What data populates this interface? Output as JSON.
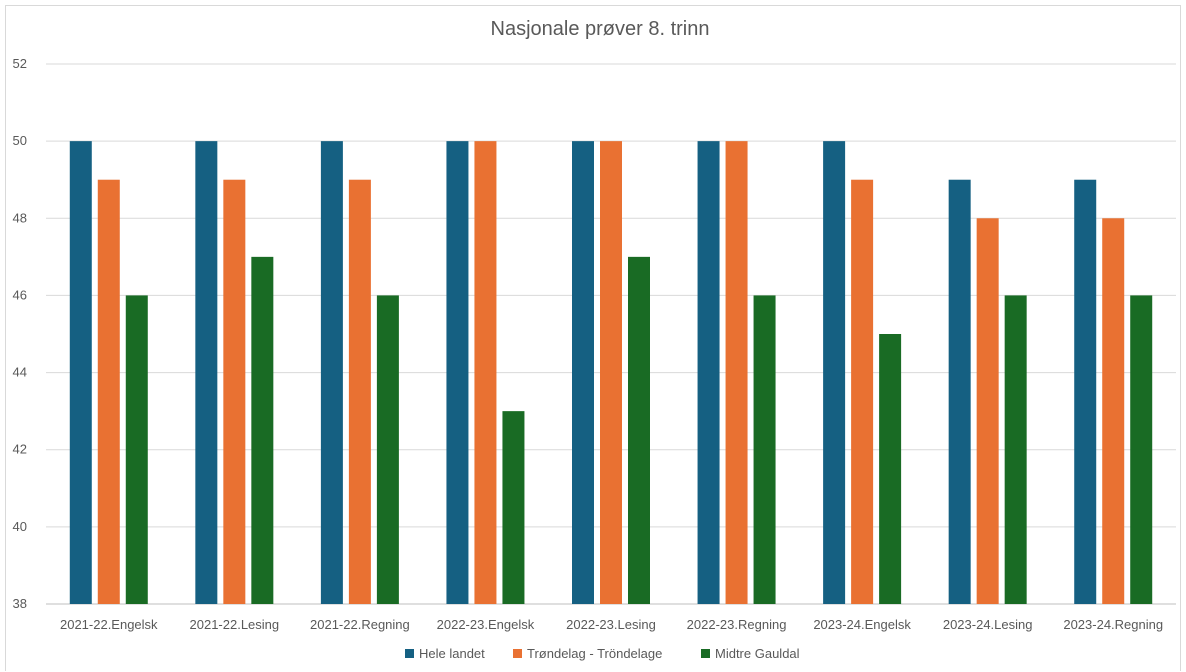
{
  "chart_data": {
    "type": "bar",
    "title": "Nasjonale prøver 8. trinn",
    "xlabel": "",
    "ylabel": "",
    "ylim": [
      38,
      52
    ],
    "yticks": [
      38,
      40,
      42,
      44,
      46,
      48,
      50,
      52
    ],
    "grid": true,
    "legend_position": "bottom",
    "categories": [
      "2021-22.Engelsk",
      "2021-22.Lesing",
      "2021-22.Regning",
      "2022-23.Engelsk",
      "2022-23.Lesing",
      "2022-23.Regning",
      "2023-24.Engelsk",
      "2023-24.Lesing",
      "2023-24.Regning"
    ],
    "series": [
      {
        "name": "Hele landet",
        "color": "#156082",
        "values": [
          50,
          50,
          50,
          50,
          50,
          50,
          50,
          49,
          49
        ]
      },
      {
        "name": "Trøndelag - Tröndelage",
        "color": "#e97132",
        "values": [
          49,
          49,
          49,
          50,
          50,
          50,
          49,
          48,
          48
        ]
      },
      {
        "name": "Midtre Gauldal",
        "color": "#196b24",
        "values": [
          46,
          47,
          46,
          43,
          47,
          46,
          45,
          46,
          46
        ]
      }
    ]
  }
}
